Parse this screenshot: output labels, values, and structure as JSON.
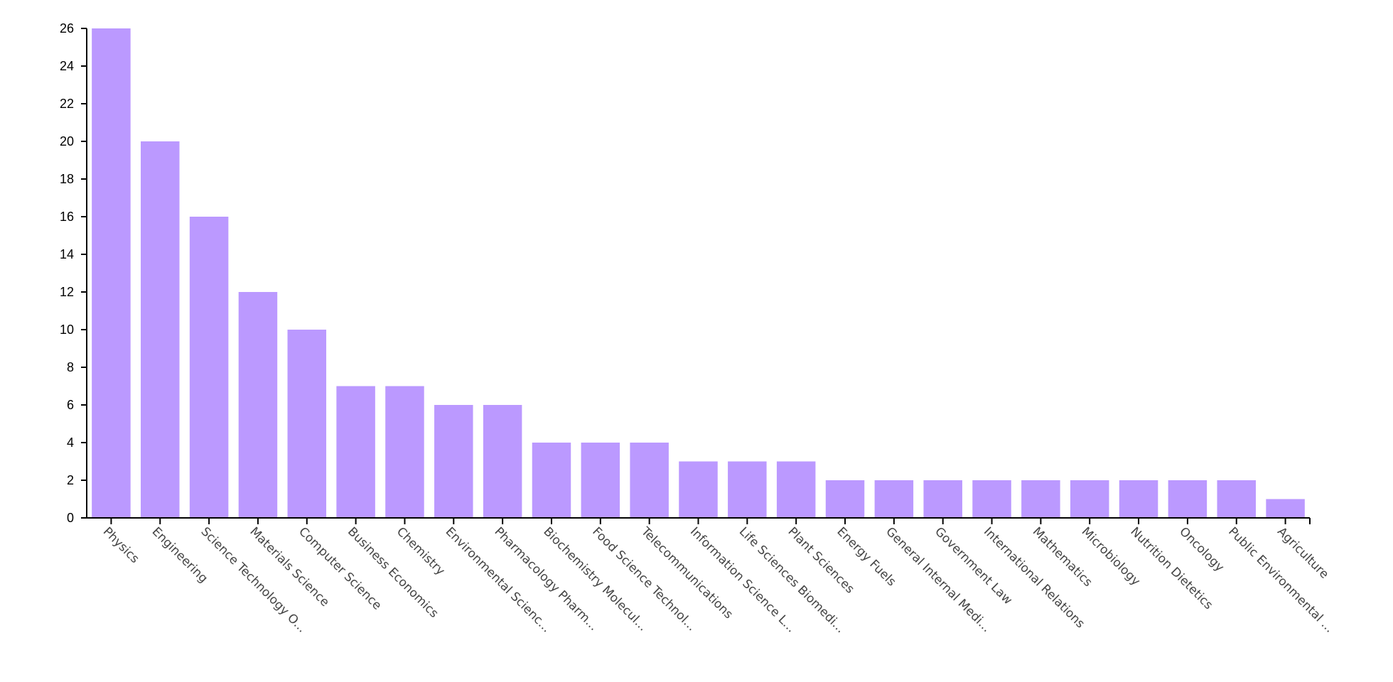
{
  "chart_data": {
    "type": "bar",
    "title": "",
    "xlabel": "",
    "ylabel": "",
    "ylim": [
      0,
      26
    ],
    "yticks": [
      0,
      2,
      4,
      6,
      8,
      10,
      12,
      14,
      16,
      18,
      20,
      22,
      24,
      26
    ],
    "grid": false,
    "bar_color": "#bb99ff",
    "categories": [
      "Physics",
      "Engineering",
      "Science Technology O...",
      "Materials Science",
      "Computer Science",
      "Business Economics",
      "Chemistry",
      "Environmental Scienc...",
      "Pharmacology Pharm...",
      "Biochemistry Molecul...",
      "Food Science Technol...",
      "Telecommunications",
      "Information Science L...",
      "Life Sciences Biomedi...",
      "Plant Sciences",
      "Energy Fuels",
      "General Internal Medi...",
      "Government Law",
      "International Relations",
      "Mathematics",
      "Microbiology",
      "Nutrition Dietetics",
      "Oncology",
      "Public Environmental ...",
      "Agriculture"
    ],
    "values": [
      26,
      20,
      16,
      12,
      10,
      7,
      7,
      6,
      6,
      4,
      4,
      4,
      3,
      3,
      3,
      2,
      2,
      2,
      2,
      2,
      2,
      2,
      2,
      2,
      1
    ]
  }
}
